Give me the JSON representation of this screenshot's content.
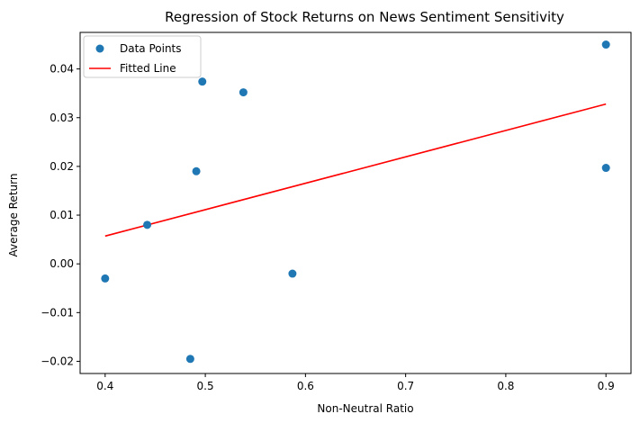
{
  "chart_data": {
    "type": "scatter",
    "title": "Regression of Stock Returns on News Sentiment Sensitivity",
    "xlabel": "Non-Neutral Ratio",
    "ylabel": "Average Return",
    "xlim": [
      0.375,
      0.925
    ],
    "ylim": [
      -0.0225,
      0.0475
    ],
    "xticks": [
      0.4,
      0.5,
      0.6,
      0.7,
      0.8,
      0.9
    ],
    "xtick_labels": [
      "0.4",
      "0.5",
      "0.6",
      "0.7",
      "0.8",
      "0.9"
    ],
    "yticks": [
      -0.02,
      -0.01,
      0.0,
      0.01,
      0.02,
      0.03,
      0.04
    ],
    "ytick_labels": [
      "−0.02",
      "−0.01",
      "0.00",
      "0.01",
      "0.02",
      "0.03",
      "0.04"
    ],
    "grid": false,
    "legend_position": "top-left",
    "series": [
      {
        "name": "Data Points",
        "kind": "scatter",
        "color": "#1f77b4",
        "points": [
          {
            "x": 0.4,
            "y": -0.003
          },
          {
            "x": 0.442,
            "y": 0.008
          },
          {
            "x": 0.485,
            "y": -0.0195
          },
          {
            "x": 0.491,
            "y": 0.019
          },
          {
            "x": 0.497,
            "y": 0.0374
          },
          {
            "x": 0.538,
            "y": 0.0352
          },
          {
            "x": 0.587,
            "y": -0.002
          },
          {
            "x": 0.9,
            "y": 0.045
          },
          {
            "x": 0.9,
            "y": 0.0197
          }
        ]
      },
      {
        "name": "Fitted Line",
        "kind": "line",
        "color": "#ff0000",
        "points": [
          {
            "x": 0.4,
            "y": 0.0057
          },
          {
            "x": 0.9,
            "y": 0.0328
          }
        ]
      }
    ]
  }
}
